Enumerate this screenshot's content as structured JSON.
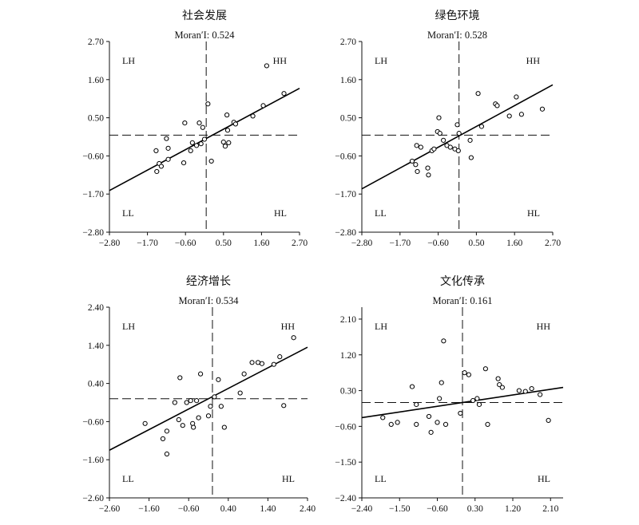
{
  "chart_data": [
    {
      "type": "scatter",
      "title": "社会发展",
      "moran_label": "Moran′I: 0.524",
      "xlim": [
        -2.8,
        2.7
      ],
      "ylim": [
        -2.8,
        2.7
      ],
      "xticks": [
        -2.8,
        -1.7,
        -0.6,
        0.5,
        1.6,
        2.7
      ],
      "yticks": [
        -2.8,
        -1.7,
        -0.6,
        0.5,
        1.6,
        2.7
      ],
      "xtick_labels": [
        "−2.80",
        "−1.70",
        "−0.60",
        "0.50",
        "1.60",
        "2.70"
      ],
      "ytick_labels": [
        "−2.80",
        "−1.70",
        "−0.60",
        "0.50",
        "1.60",
        "2.70"
      ],
      "quadrants": {
        "lh": "LH",
        "hh": "HH",
        "ll": "LL",
        "hl": "HL"
      },
      "ref_x": 0,
      "ref_y": 0,
      "fit_line": {
        "x": [
          -2.8,
          2.7
        ],
        "y": [
          -1.6,
          1.35
        ]
      },
      "points": [
        [
          -1.45,
          -0.45
        ],
        [
          -1.43,
          -1.05
        ],
        [
          -1.36,
          -0.82
        ],
        [
          -1.3,
          -0.9
        ],
        [
          -1.15,
          -0.1
        ],
        [
          -1.1,
          -0.38
        ],
        [
          -1.1,
          -0.7
        ],
        [
          -0.65,
          -0.8
        ],
        [
          -0.62,
          0.35
        ],
        [
          -0.45,
          -0.45
        ],
        [
          -0.4,
          -0.22
        ],
        [
          -0.28,
          -0.3
        ],
        [
          -0.2,
          0.35
        ],
        [
          -0.15,
          -0.25
        ],
        [
          -0.1,
          0.22
        ],
        [
          -0.05,
          -0.12
        ],
        [
          0.05,
          0.9
        ],
        [
          0.15,
          -0.75
        ],
        [
          0.5,
          -0.2
        ],
        [
          0.55,
          -0.32
        ],
        [
          0.6,
          0.58
        ],
        [
          0.62,
          0.14
        ],
        [
          0.65,
          -0.22
        ],
        [
          0.8,
          0.37
        ],
        [
          0.85,
          0.32
        ],
        [
          1.35,
          0.55
        ],
        [
          1.65,
          0.85
        ],
        [
          1.75,
          2.0
        ],
        [
          2.25,
          1.2
        ]
      ]
    },
    {
      "type": "scatter",
      "title": "绿色环境",
      "moran_label": "Moran′I: 0.528",
      "xlim": [
        -2.8,
        2.7
      ],
      "ylim": [
        -2.8,
        2.7
      ],
      "xticks": [
        -2.8,
        -1.7,
        -0.6,
        0.5,
        1.6,
        2.7
      ],
      "yticks": [
        -2.8,
        -1.7,
        -0.6,
        0.5,
        1.6,
        2.7
      ],
      "xtick_labels": [
        "−2.80",
        "−1.70",
        "−0.60",
        "0.50",
        "1.60",
        "2.70"
      ],
      "ytick_labels": [
        "−2.80",
        "−1.70",
        "−0.60",
        "0.50",
        "1.60",
        "2.70"
      ],
      "quadrants": {
        "lh": "LH",
        "hh": "HH",
        "ll": "LL",
        "hl": "HL"
      },
      "ref_x": 0,
      "ref_y": 0,
      "fit_line": {
        "x": [
          -2.8,
          2.7
        ],
        "y": [
          -1.55,
          1.45
        ]
      },
      "points": [
        [
          -1.35,
          -0.75
        ],
        [
          -1.25,
          -0.85
        ],
        [
          -1.22,
          -0.3
        ],
        [
          -1.2,
          -1.05
        ],
        [
          -1.1,
          -0.35
        ],
        [
          -0.9,
          -0.95
        ],
        [
          -0.88,
          -1.15
        ],
        [
          -0.78,
          -0.45
        ],
        [
          -0.72,
          -0.4
        ],
        [
          -0.62,
          0.1
        ],
        [
          -0.58,
          0.5
        ],
        [
          -0.55,
          0.05
        ],
        [
          -0.45,
          -0.15
        ],
        [
          -0.35,
          -0.3
        ],
        [
          -0.25,
          -0.35
        ],
        [
          -0.12,
          -0.4
        ],
        [
          -0.05,
          0.3
        ],
        [
          -0.02,
          -0.45
        ],
        [
          0.32,
          -0.15
        ],
        [
          0.35,
          -0.65
        ],
        [
          0.55,
          1.2
        ],
        [
          0.65,
          0.25
        ],
        [
          1.05,
          0.9
        ],
        [
          1.1,
          0.85
        ],
        [
          1.45,
          0.55
        ],
        [
          1.65,
          1.1
        ],
        [
          1.8,
          0.6
        ],
        [
          2.4,
          0.75
        ],
        [
          0.0,
          0.05
        ]
      ]
    },
    {
      "type": "scatter",
      "title": "经济增长",
      "moran_label": "Moran′I: 0.534",
      "xlim": [
        -2.6,
        2.4
      ],
      "ylim": [
        -2.6,
        2.4
      ],
      "xticks": [
        -2.6,
        -1.6,
        -0.6,
        0.4,
        1.4,
        2.4
      ],
      "yticks": [
        -2.6,
        -1.6,
        -0.6,
        0.4,
        1.4,
        2.4
      ],
      "xtick_labels": [
        "−2.60",
        "−1.60",
        "−0.60",
        "0.40",
        "1.40",
        "2.40"
      ],
      "ytick_labels": [
        "−2.60",
        "−1.60",
        "−0.60",
        "0.40",
        "1.40",
        "2.40"
      ],
      "quadrants": {
        "lh": "LH",
        "hh": "HH",
        "ll": "LL",
        "hl": "HL"
      },
      "ref_x": 0,
      "ref_y": 0,
      "fit_line": {
        "x": [
          -2.6,
          2.4
        ],
        "y": [
          -1.35,
          1.35
        ]
      },
      "points": [
        [
          -1.7,
          -0.65
        ],
        [
          -1.25,
          -1.05
        ],
        [
          -1.15,
          -0.85
        ],
        [
          -1.15,
          -1.45
        ],
        [
          -0.95,
          -0.1
        ],
        [
          -0.85,
          -0.55
        ],
        [
          -0.82,
          0.55
        ],
        [
          -0.75,
          -0.7
        ],
        [
          -0.65,
          -0.1
        ],
        [
          -0.55,
          -0.05
        ],
        [
          -0.5,
          -0.65
        ],
        [
          -0.48,
          -0.75
        ],
        [
          -0.4,
          -0.05
        ],
        [
          -0.35,
          -0.5
        ],
        [
          -0.3,
          0.65
        ],
        [
          -0.1,
          -0.45
        ],
        [
          -0.05,
          -0.2
        ],
        [
          0.05,
          0.05
        ],
        [
          0.15,
          0.5
        ],
        [
          0.22,
          -0.2
        ],
        [
          0.3,
          -0.75
        ],
        [
          0.7,
          0.15
        ],
        [
          0.8,
          0.65
        ],
        [
          1.0,
          0.95
        ],
        [
          1.15,
          0.95
        ],
        [
          1.25,
          0.92
        ],
        [
          1.55,
          0.9
        ],
        [
          1.7,
          1.1
        ],
        [
          1.8,
          -0.18
        ],
        [
          2.05,
          1.6
        ]
      ]
    },
    {
      "type": "scatter",
      "title": "文化传承",
      "moran_label": "Moran′I: 0.161",
      "xlim": [
        -2.4,
        2.4
      ],
      "ylim": [
        -2.4,
        2.4
      ],
      "xticks": [
        -2.4,
        -1.5,
        -0.6,
        0.3,
        1.2,
        2.1
      ],
      "yticks": [
        -2.4,
        -1.5,
        -0.6,
        0.3,
        1.2,
        2.1
      ],
      "xtick_labels": [
        "−2.40",
        "−1.50",
        "−0.60",
        "0.30",
        "1.20",
        "2.10"
      ],
      "ytick_labels": [
        "−2.40",
        "−1.50",
        "−0.60",
        "0.30",
        "1.20",
        "2.10"
      ],
      "quadrants": {
        "lh": "LH",
        "hh": "HH",
        "ll": "LL",
        "hl": "HL"
      },
      "ref_x": 0,
      "ref_y": 0,
      "fit_line": {
        "x": [
          -2.4,
          2.4
        ],
        "y": [
          -0.38,
          0.38
        ]
      },
      "points": [
        [
          -1.9,
          -0.38
        ],
        [
          -1.7,
          -0.55
        ],
        [
          -1.55,
          -0.5
        ],
        [
          -1.2,
          0.4
        ],
        [
          -1.1,
          -0.05
        ],
        [
          -1.1,
          -0.55
        ],
        [
          -0.8,
          -0.35
        ],
        [
          -0.75,
          -0.75
        ],
        [
          -0.6,
          -0.5
        ],
        [
          -0.55,
          0.1
        ],
        [
          -0.5,
          0.5
        ],
        [
          -0.45,
          1.55
        ],
        [
          -0.4,
          -0.55
        ],
        [
          -0.05,
          -0.27
        ],
        [
          0.05,
          0.75
        ],
        [
          0.15,
          0.7
        ],
        [
          0.25,
          0.05
        ],
        [
          0.35,
          0.1
        ],
        [
          0.4,
          -0.05
        ],
        [
          0.55,
          0.85
        ],
        [
          0.6,
          -0.55
        ],
        [
          0.85,
          0.6
        ],
        [
          0.88,
          0.45
        ],
        [
          0.95,
          0.38
        ],
        [
          1.35,
          0.3
        ],
        [
          1.5,
          0.28
        ],
        [
          1.65,
          0.35
        ],
        [
          1.85,
          0.2
        ],
        [
          2.05,
          -0.45
        ]
      ]
    }
  ]
}
